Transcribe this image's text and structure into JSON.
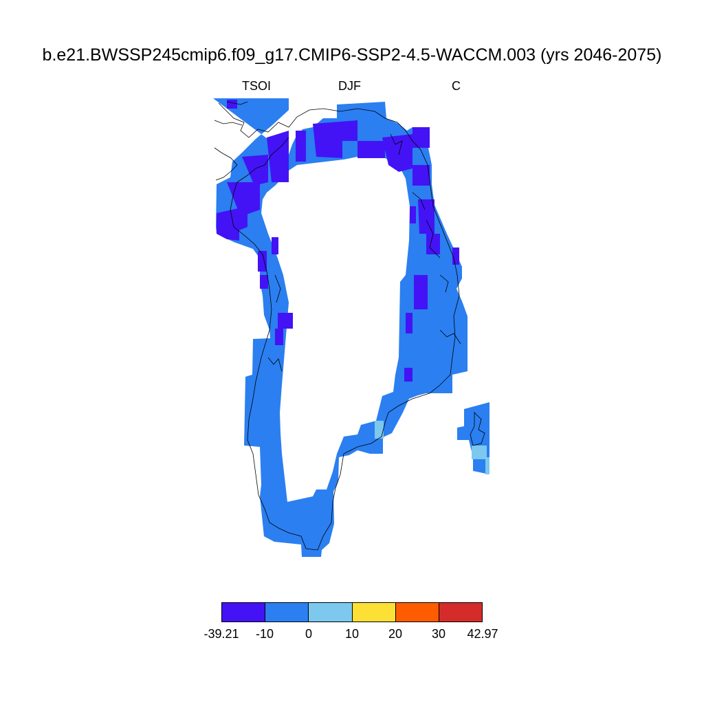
{
  "title": "b.e21.BWSSP245cmip6.f09_g17.CMIP6-SSP2-4.5-WACCM.003 (yrs 2046-2075)",
  "subtitle_left": "TSOI",
  "subtitle_center": "DJF",
  "subtitle_right": "C",
  "colorbar": {
    "colors": [
      "#4313f5",
      "#2b7ff0",
      "#7cc8ef",
      "#fde035",
      "#fd5c00",
      "#d42b2b"
    ],
    "labels": [
      "-39.21",
      "-10",
      "0",
      "10",
      "20",
      "30",
      "42.97"
    ]
  }
}
